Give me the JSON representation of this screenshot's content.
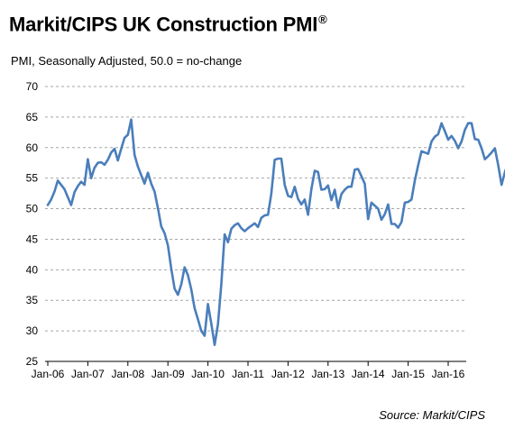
{
  "header": {
    "title": "Markit/CIPS UK Construction PMI",
    "title_mark": "®",
    "subtitle": "PMI, Seasonally Adjusted, 50.0 = no-change"
  },
  "footer": {
    "source": "Source: Markit/CIPS"
  },
  "colors": {
    "line": "#4a7ebb",
    "grid": "#a6a6a6",
    "axis": "#000000"
  },
  "chart_data": {
    "type": "line",
    "title": "Markit/CIPS UK Construction PMI",
    "subtitle": "PMI, Seasonally Adjusted, 50.0 = no-change",
    "xlabel": "",
    "ylabel": "",
    "ylim": [
      25,
      70
    ],
    "yticks": [
      25,
      30,
      35,
      40,
      45,
      50,
      55,
      60,
      65,
      70
    ],
    "xticks": [
      "Jan-06",
      "Jan-07",
      "Jan-08",
      "Jan-09",
      "Jan-10",
      "Jan-11",
      "Jan-12",
      "Jan-13",
      "Jan-14",
      "Jan-15",
      "Jan-16"
    ],
    "grid": "horizontal dashed",
    "legend": "none",
    "start": "Jan-06",
    "series": [
      {
        "name": "",
        "values": [
          50.6,
          51.5,
          52.8,
          54.6,
          53.9,
          53.2,
          51.9,
          50.6,
          52.7,
          53.7,
          54.4,
          53.9,
          58.1,
          55.0,
          56.7,
          57.5,
          57.6,
          57.2,
          58.0,
          59.2,
          59.8,
          57.9,
          59.8,
          61.6,
          62.1,
          64.6,
          58.8,
          56.9,
          55.5,
          54.1,
          55.9,
          54.1,
          52.8,
          50.1,
          47.1,
          46.0,
          44.0,
          40.2,
          36.9,
          35.9,
          37.6,
          40.4,
          39.1,
          36.8,
          33.7,
          31.9,
          30.0,
          29.2,
          34.4,
          31.2,
          27.7,
          31.1,
          37.6,
          45.8,
          44.5,
          46.7,
          47.3,
          47.6,
          46.8,
          46.3,
          46.8,
          47.2,
          47.6,
          47.0,
          48.5,
          48.9,
          49.0,
          52.5,
          58.0,
          58.2,
          58.2,
          53.9,
          52.1,
          51.9,
          53.6,
          51.6,
          50.7,
          51.5,
          49.0,
          53.2,
          56.2,
          56.0,
          53.1,
          53.2,
          53.8,
          51.4,
          53.1,
          50.2,
          52.4,
          53.1,
          53.6,
          53.6,
          56.4,
          56.5,
          55.3,
          54.1,
          48.3,
          51.0,
          50.5,
          50.0,
          48.2,
          49.1,
          50.7,
          47.5,
          47.5,
          46.9,
          47.8,
          51.0,
          51.1,
          51.5,
          54.6,
          57.1,
          59.4,
          59.2,
          59.0,
          61.0,
          61.8,
          62.2,
          64.0,
          62.7,
          61.3,
          61.9,
          61.1,
          59.9,
          61.0,
          62.9,
          64.0,
          64.0,
          61.4,
          61.3,
          59.9,
          58.1,
          58.6,
          59.2,
          59.9,
          57.1,
          53.9,
          56.0,
          57.5,
          57.3,
          58.0,
          59.9,
          57.3,
          55.4,
          57.9,
          56.6,
          54.2,
          54.1,
          54.2
        ]
      }
    ]
  }
}
